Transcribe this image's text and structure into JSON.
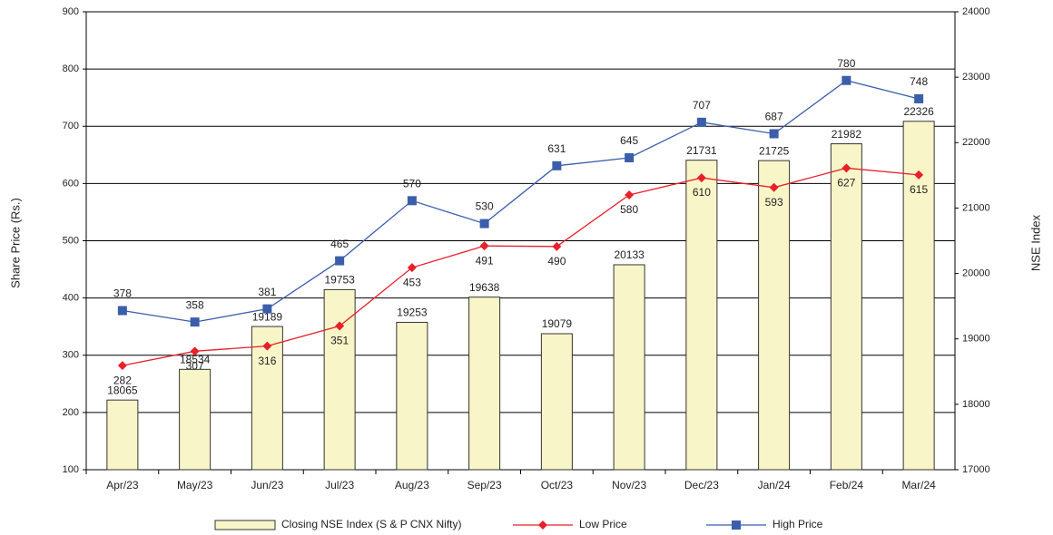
{
  "chart_data": {
    "type": "bar",
    "y_label": "Share Price (Rs.)",
    "y2_label": "NSE Index",
    "categories": [
      "Apr/23",
      "May/23",
      "Jun/23",
      "Jul/23",
      "Aug/23",
      "Sep/23",
      "Oct/23",
      "Nov/23",
      "Dec/23",
      "Jan/24",
      "Feb/24",
      "Mar/24"
    ],
    "ylim": [
      100,
      900
    ],
    "yticks": [
      100,
      200,
      300,
      400,
      500,
      600,
      700,
      800,
      900
    ],
    "y2lim": [
      17000,
      24000
    ],
    "y2ticks": [
      17000,
      18000,
      19000,
      20000,
      21000,
      22000,
      23000,
      24000
    ],
    "grid": true,
    "legend": "bottom",
    "series": [
      {
        "name": "Closing NSE Index (S & P CNX Nifty)",
        "type": "bar",
        "axis": "y2",
        "color": "#f8f6c8",
        "values": [
          18065,
          18534,
          19189,
          19753,
          19253,
          19638,
          19079,
          20133,
          21731,
          21725,
          21982,
          22326
        ]
      },
      {
        "name": "Low Price",
        "type": "line",
        "marker": "diamond",
        "color": "#e8202a",
        "values": [
          282,
          307,
          316,
          351,
          453,
          491,
          490,
          580,
          610,
          593,
          627,
          615
        ]
      },
      {
        "name": "High Price",
        "type": "line",
        "marker": "square",
        "color": "#3b5eab",
        "values": [
          378,
          358,
          381,
          465,
          570,
          530,
          631,
          645,
          707,
          687,
          780,
          748
        ]
      }
    ]
  }
}
